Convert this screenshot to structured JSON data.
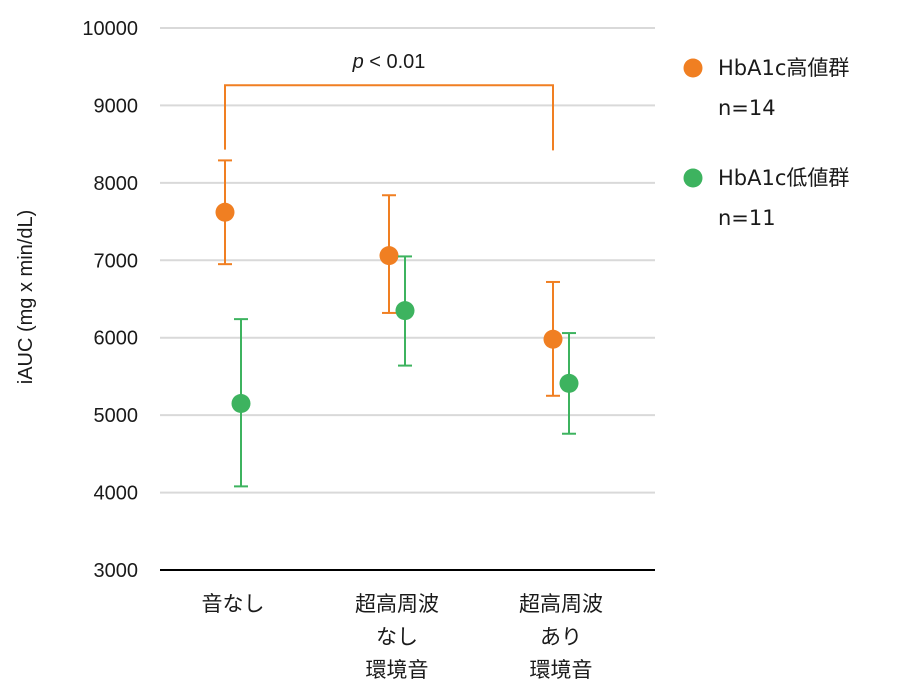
{
  "chart_data": {
    "type": "scatter",
    "ylabel": "iAUC (mg x min/dL)",
    "xlabel": "",
    "ylim": [
      3000,
      10000
    ],
    "yticks": [
      "3000",
      "4000",
      "5000",
      "6000",
      "7000",
      "8000",
      "9000",
      "10000"
    ],
    "grid": true,
    "legend_position": "right",
    "categories": [
      [
        "音なし"
      ],
      [
        "超高周波",
        "なし",
        "環境音"
      ],
      [
        "超高周波",
        "あり",
        "環境音"
      ]
    ],
    "series": [
      {
        "name": "HbA1c高値群",
        "n_label": "n=14",
        "color": "#F07F22",
        "values": [
          7620,
          7060,
          5980
        ],
        "err_low": [
          6950,
          6320,
          5250
        ],
        "err_high": [
          8290,
          7840,
          6720
        ]
      },
      {
        "name": "HbA1c低値群",
        "n_label": "n=11",
        "color": "#3DB35F",
        "values": [
          5150,
          6350,
          5410
        ],
        "err_low": [
          4080,
          5640,
          4760
        ],
        "err_high": [
          6240,
          7050,
          6060
        ]
      }
    ],
    "annotation": {
      "p_label": "p",
      "rest_label": " < 0.01",
      "from_category": 0,
      "to_category": 2,
      "bracket_value": 9260,
      "left_foot": 8430,
      "right_foot": 8420,
      "color": "#F07F22"
    }
  }
}
